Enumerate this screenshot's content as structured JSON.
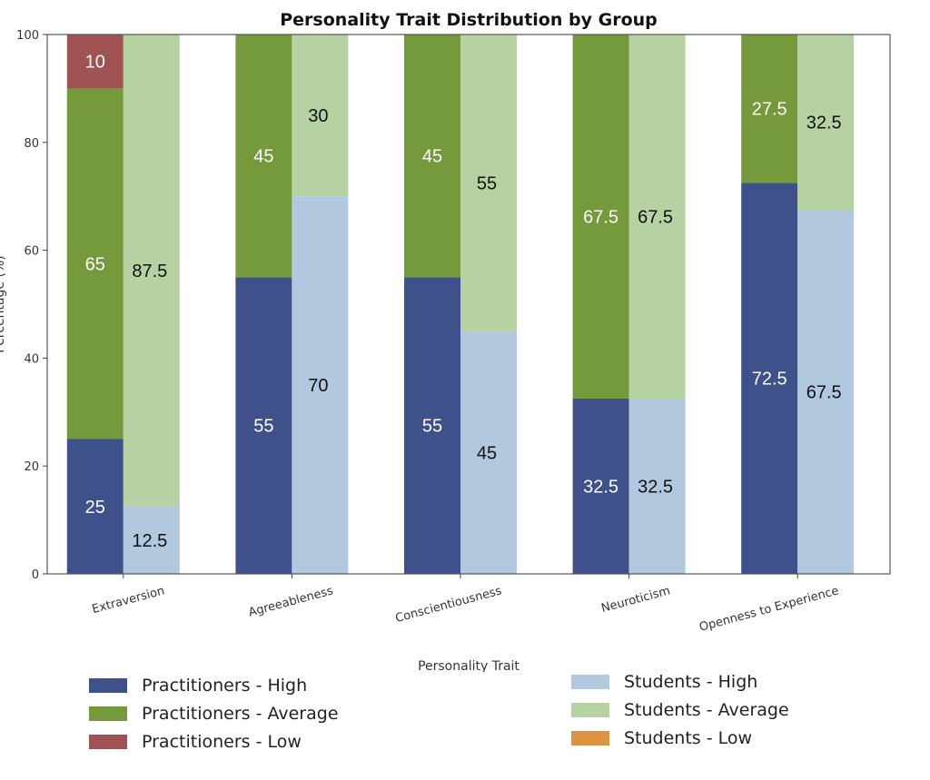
{
  "chart_data": {
    "type": "bar",
    "stacked": true,
    "grouped": true,
    "title": "Personality Trait Distribution by Group",
    "xlabel": "Personality Trait",
    "ylabel": "Percentage (%)",
    "ylim": [
      0,
      100
    ],
    "yticks": [
      0,
      20,
      40,
      60,
      80,
      100
    ],
    "grid": false,
    "legend_position": "bottom",
    "categories": [
      "Extraversion",
      "Agreeableness",
      "Conscientiousness",
      "Neuroticism",
      "Openness to Experience"
    ],
    "groups": [
      {
        "name": "Practitioners",
        "series": [
          {
            "name": "Practitioners - High",
            "color": "#3f518b",
            "label_color": "#ffffff",
            "values": [
              25,
              55,
              55,
              32.5,
              72.5
            ]
          },
          {
            "name": "Practitioners - Average",
            "color": "#759a3b",
            "label_color": "#ffffff",
            "values": [
              65,
              45,
              45,
              67.5,
              27.5
            ]
          },
          {
            "name": "Practitioners - Low",
            "color": "#a05252",
            "label_color": "#ffffff",
            "values": [
              10,
              0,
              0,
              0,
              0
            ]
          }
        ]
      },
      {
        "name": "Students",
        "series": [
          {
            "name": "Students - High",
            "color": "#b1c8df",
            "label_color": "#111111",
            "values": [
              12.5,
              70,
              45,
              32.5,
              67.5
            ]
          },
          {
            "name": "Students - Average",
            "color": "#b6d2a2",
            "label_color": "#111111",
            "values": [
              87.5,
              30,
              55,
              67.5,
              32.5
            ]
          },
          {
            "name": "Students - Low",
            "color": "#dc9441",
            "label_color": "#111111",
            "values": [
              0,
              0,
              0,
              0,
              0
            ]
          }
        ]
      }
    ]
  },
  "legend": {
    "left": [
      {
        "label": "Practitioners - High",
        "color": "#3f518b"
      },
      {
        "label": "Practitioners - Average",
        "color": "#759a3b"
      },
      {
        "label": "Practitioners - Low",
        "color": "#a05252"
      }
    ],
    "right": [
      {
        "label": "Students - High",
        "color": "#b1c8df"
      },
      {
        "label": "Students - Average",
        "color": "#b6d2a2"
      },
      {
        "label": "Students - Low",
        "color": "#dc9441"
      }
    ]
  }
}
